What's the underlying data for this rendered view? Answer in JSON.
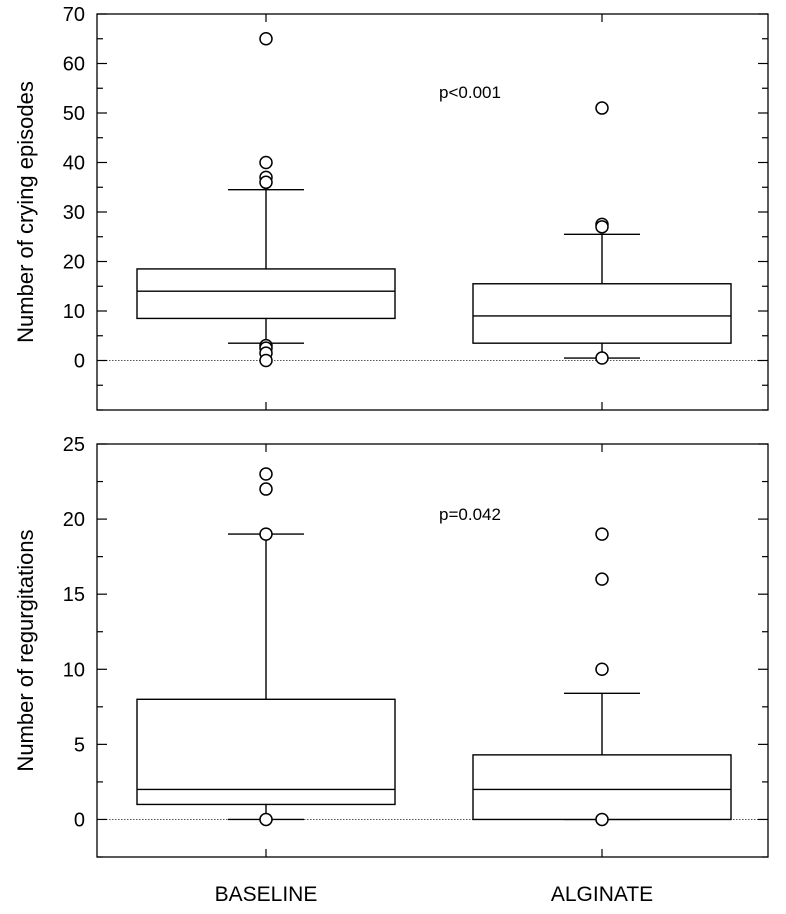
{
  "chart_data": [
    {
      "type": "box",
      "ylabel": "Number of crying episodes",
      "ylim": [
        -10,
        70
      ],
      "yticks": [
        0,
        10,
        20,
        30,
        40,
        50,
        60,
        70
      ],
      "categories": [
        "BASELINE",
        "ALGINATE"
      ],
      "annotation": "p<0.001",
      "zero_line": true,
      "boxes": [
        {
          "category": "BASELINE",
          "whisker_low": 3.5,
          "q1": 8.5,
          "median": 14,
          "q3": 18.5,
          "whisker_high": 34.5,
          "outliers": [
            65,
            40,
            37,
            36,
            3,
            2.5,
            1.5,
            0
          ]
        },
        {
          "category": "ALGINATE",
          "whisker_low": 0.5,
          "q1": 3.5,
          "median": 9,
          "q3": 15.5,
          "whisker_high": 25.5,
          "outliers": [
            51,
            27.5,
            27,
            0.5
          ]
        }
      ]
    },
    {
      "type": "box",
      "ylabel": "Number of regurgitations",
      "ylim": [
        -2.5,
        25
      ],
      "yticks": [
        0,
        5,
        10,
        15,
        20,
        25
      ],
      "categories": [
        "BASELINE",
        "ALGINATE"
      ],
      "annotation": "p=0.042",
      "zero_line": true,
      "boxes": [
        {
          "category": "BASELINE",
          "whisker_low": 0,
          "q1": 1,
          "median": 2,
          "q3": 8,
          "whisker_high": 19,
          "outliers": [
            23,
            22,
            19,
            0
          ]
        },
        {
          "category": "ALGINATE",
          "whisker_low": 0,
          "q1": 0,
          "median": 2,
          "q3": 4.3,
          "whisker_high": 8.4,
          "outliers": [
            19,
            16,
            10,
            0
          ]
        }
      ]
    }
  ]
}
